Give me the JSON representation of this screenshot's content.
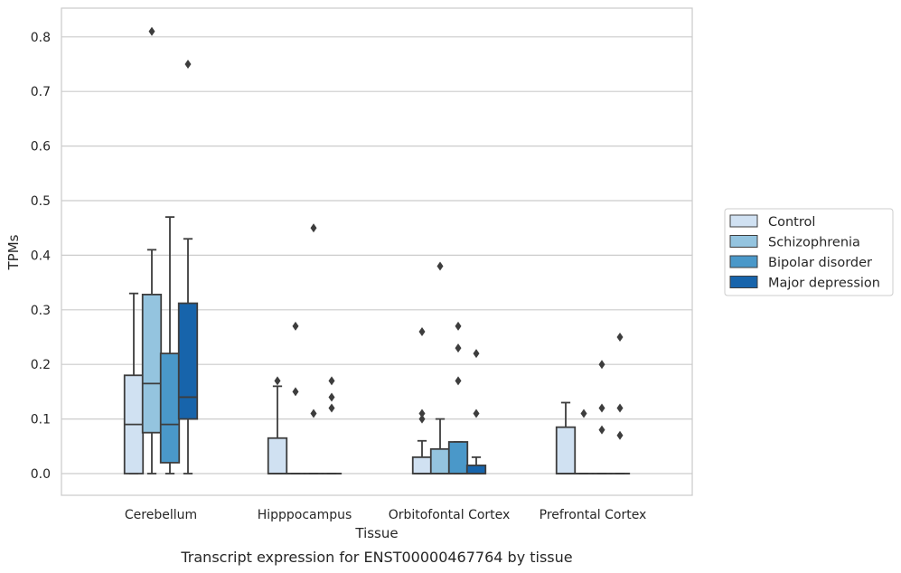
{
  "chart_data": {
    "type": "box",
    "title": "",
    "caption": "Transcript expression for ENST00000467764 by tissue",
    "xlabel": "Tissue",
    "ylabel": "TPMs",
    "ylim": [
      -0.04,
      0.85
    ],
    "yticks": [
      "0.0",
      "0.1",
      "0.2",
      "0.3",
      "0.4",
      "0.5",
      "0.6",
      "0.7",
      "0.8"
    ],
    "grid": "horizontal",
    "legend_position": "right",
    "categories": [
      "Cerebellum",
      "Hipppocampus",
      "Orbitofontal Cortex",
      "Prefrontal Cortex"
    ],
    "series": [
      {
        "name": "Control",
        "color": "#d0e1f2",
        "boxes": [
          {
            "q1": 0.0,
            "median": 0.09,
            "q3": 0.18,
            "whisker_low": 0.0,
            "whisker_high": 0.33,
            "outliers": []
          },
          {
            "q1": 0.0,
            "median": 0.0,
            "q3": 0.065,
            "whisker_low": 0.0,
            "whisker_high": 0.16,
            "outliers": [
              0.17
            ]
          },
          {
            "q1": 0.0,
            "median": 0.0,
            "q3": 0.03,
            "whisker_low": 0.0,
            "whisker_high": 0.06,
            "outliers": [
              0.1,
              0.11,
              0.26
            ]
          },
          {
            "q1": 0.0,
            "median": 0.0,
            "q3": 0.085,
            "whisker_low": 0.0,
            "whisker_high": 0.13,
            "outliers": []
          }
        ]
      },
      {
        "name": "Schizophrenia",
        "color": "#94c4df",
        "boxes": [
          {
            "q1": 0.075,
            "median": 0.165,
            "q3": 0.328,
            "whisker_low": 0.0,
            "whisker_high": 0.41,
            "outliers": [
              0.81
            ]
          },
          {
            "q1": 0.0,
            "median": 0.0,
            "q3": 0.0,
            "whisker_low": 0.0,
            "whisker_high": 0.0,
            "outliers": [
              0.15,
              0.27
            ]
          },
          {
            "q1": 0.0,
            "median": 0.0,
            "q3": 0.045,
            "whisker_low": 0.0,
            "whisker_high": 0.1,
            "outliers": [
              0.38
            ]
          },
          {
            "q1": 0.0,
            "median": 0.0,
            "q3": 0.0,
            "whisker_low": 0.0,
            "whisker_high": 0.0,
            "outliers": [
              0.11
            ]
          }
        ]
      },
      {
        "name": "Bipolar disorder",
        "color": "#4a98c9",
        "boxes": [
          {
            "q1": 0.02,
            "median": 0.09,
            "q3": 0.22,
            "whisker_low": 0.0,
            "whisker_high": 0.47,
            "outliers": []
          },
          {
            "q1": 0.0,
            "median": 0.0,
            "q3": 0.0,
            "whisker_low": 0.0,
            "whisker_high": 0.0,
            "outliers": [
              0.11,
              0.45
            ]
          },
          {
            "q1": 0.0,
            "median": 0.0,
            "q3": 0.058,
            "whisker_low": 0.0,
            "whisker_high": 0.058,
            "outliers": [
              0.17,
              0.23,
              0.27
            ]
          },
          {
            "q1": 0.0,
            "median": 0.0,
            "q3": 0.0,
            "whisker_low": 0.0,
            "whisker_high": 0.0,
            "outliers": [
              0.08,
              0.12,
              0.2
            ]
          }
        ]
      },
      {
        "name": "Major depression",
        "color": "#1764ab",
        "boxes": [
          {
            "q1": 0.1,
            "median": 0.14,
            "q3": 0.312,
            "whisker_low": 0.0,
            "whisker_high": 0.43,
            "outliers": [
              0.75
            ]
          },
          {
            "q1": 0.0,
            "median": 0.0,
            "q3": 0.0,
            "whisker_low": 0.0,
            "whisker_high": 0.0,
            "outliers": [
              0.12,
              0.14,
              0.17
            ]
          },
          {
            "q1": 0.0,
            "median": 0.0,
            "q3": 0.015,
            "whisker_low": 0.0,
            "whisker_high": 0.03,
            "outliers": [
              0.11,
              0.22
            ]
          },
          {
            "q1": 0.0,
            "median": 0.0,
            "q3": 0.0,
            "whisker_low": 0.0,
            "whisker_high": 0.0,
            "outliers": [
              0.07,
              0.12,
              0.25
            ]
          }
        ]
      }
    ]
  }
}
